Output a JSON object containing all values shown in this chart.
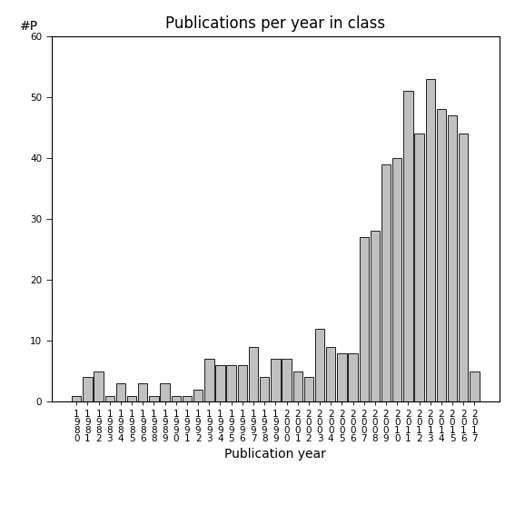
{
  "years": [
    "1980",
    "1981",
    "1982",
    "1983",
    "1984",
    "1985",
    "1986",
    "1988",
    "1989",
    "1990",
    "1991",
    "1992",
    "1993",
    "1994",
    "1995",
    "1996",
    "1997",
    "1998",
    "1999",
    "2000",
    "2001",
    "2002",
    "2003",
    "2004",
    "2005",
    "2006",
    "2007",
    "2008",
    "2009",
    "2010",
    "2011",
    "2012",
    "2013",
    "2014",
    "2015",
    "2016",
    "2017"
  ],
  "values": [
    1,
    4,
    5,
    1,
    3,
    1,
    3,
    1,
    3,
    1,
    1,
    2,
    7,
    6,
    6,
    6,
    9,
    4,
    7,
    7,
    5,
    4,
    12,
    9,
    8,
    8,
    27,
    28,
    39,
    40,
    51,
    44,
    53,
    48,
    47,
    44,
    5
  ],
  "bar_color": "#c0c0c0",
  "bar_edge_color": "#000000",
  "title": "Publications per year in class",
  "xlabel": "Publication year",
  "ylabel": "#P",
  "ylim": [
    0,
    60
  ],
  "yticks": [
    0,
    10,
    20,
    30,
    40,
    50,
    60
  ],
  "background_color": "#ffffff",
  "title_fontsize": 12,
  "label_fontsize": 10,
  "tick_fontsize": 7.5
}
